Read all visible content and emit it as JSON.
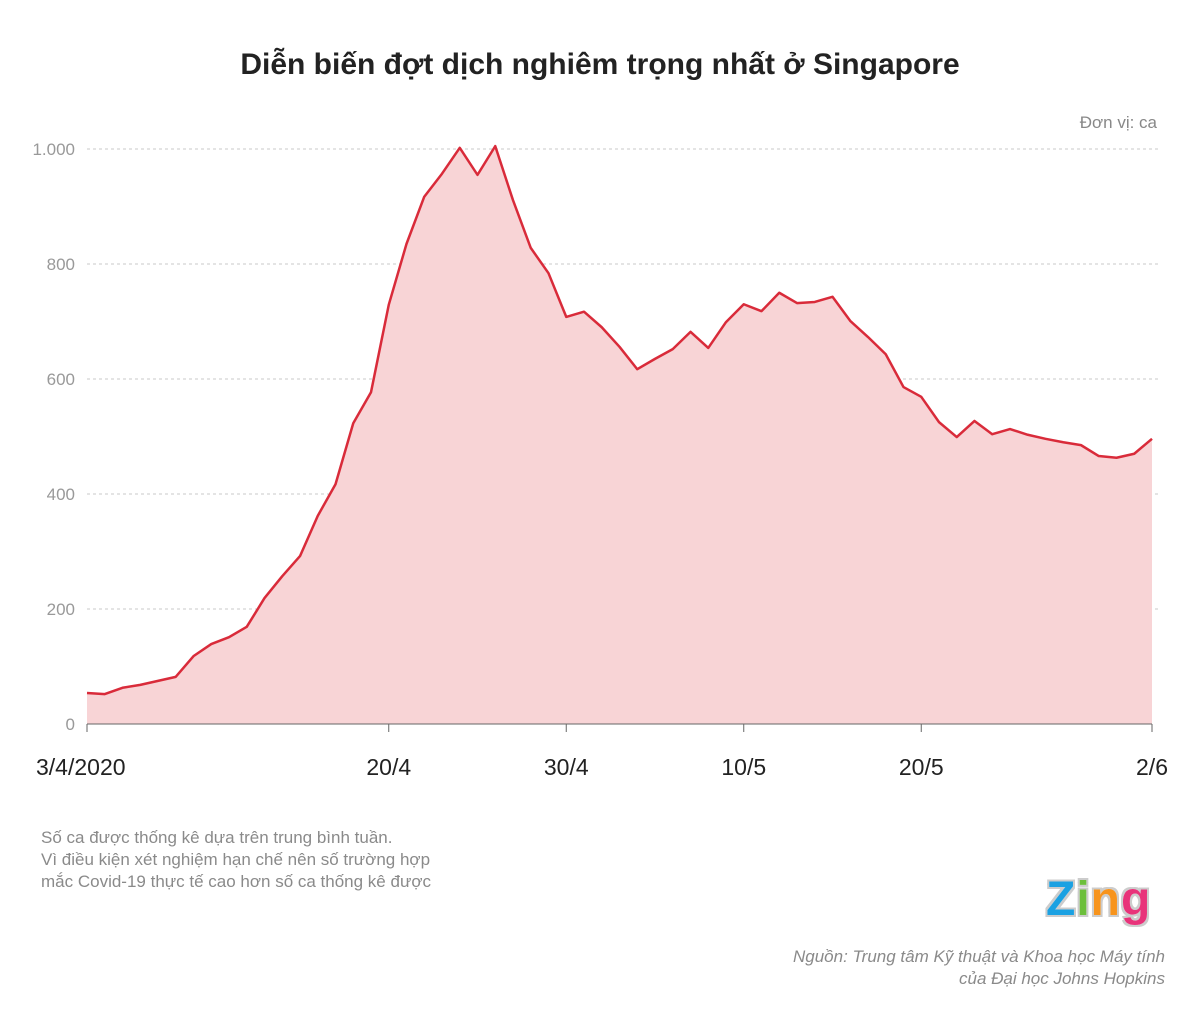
{
  "chart_data": {
    "type": "area",
    "title": "Diễn biến đợt dịch nghiêm trọng nhất ở Singapore",
    "unit_label": "Đơn vị: ca",
    "x_start": "2020-04-03",
    "x_end": "2020-06-02",
    "x_ticks": [
      {
        "date": "2020-04-03",
        "label": "3/4/2020"
      },
      {
        "date": "2020-04-20",
        "label": "20/4"
      },
      {
        "date": "2020-04-30",
        "label": "30/4"
      },
      {
        "date": "2020-05-10",
        "label": "10/5"
      },
      {
        "date": "2020-05-20",
        "label": "20/5"
      },
      {
        "date": "2020-06-02",
        "label": "2/6"
      }
    ],
    "y_ticks": [
      {
        "value": 0,
        "label": "0"
      },
      {
        "value": 200,
        "label": "200"
      },
      {
        "value": 400,
        "label": "400"
      },
      {
        "value": 600,
        "label": "600"
      },
      {
        "value": 800,
        "label": "800"
      },
      {
        "value": 1000,
        "label": "1.000"
      }
    ],
    "ylim": [
      0,
      1000
    ],
    "grid": "horizontal dashed",
    "values": [
      54,
      52,
      63,
      68,
      75,
      82,
      118,
      139,
      151,
      169,
      219,
      257,
      292,
      362,
      417,
      523,
      577,
      729,
      835,
      917,
      957,
      1002,
      955,
      1005,
      911,
      828,
      784,
      708,
      717,
      690,
      656,
      617,
      635,
      652,
      682,
      654,
      699,
      730,
      718,
      750,
      732,
      734,
      743,
      701,
      673,
      643,
      586,
      569,
      525,
      499,
      527,
      504,
      513,
      503,
      496,
      490,
      485,
      466,
      463,
      470,
      496
    ],
    "line_color": "#d92b3a",
    "fill_color": "#f8d4d6"
  },
  "footnote": [
    "Số ca được thống kê dựa trên trung bình tuần.",
    "Vì điều kiện xét nghiệm hạn chế nên số trường hợp",
    "mắc Covid-19 thực tế cao hơn số ca thống kê được"
  ],
  "source": [
    "Nguồn: Trung tâm Kỹ thuật và Khoa học Máy tính",
    "của Đại học Johns Hopkins"
  ],
  "logo": {
    "text": "Zing",
    "colors": [
      "#1ba1e2",
      "#6cbf3b",
      "#f7941d",
      "#e8337a"
    ]
  }
}
